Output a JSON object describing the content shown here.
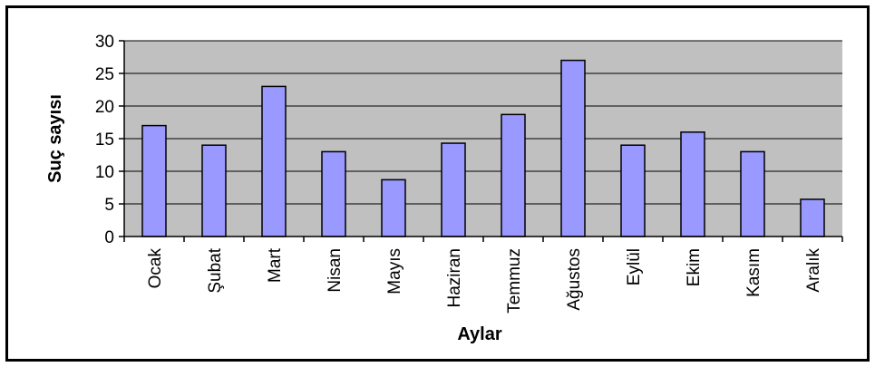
{
  "chart_data": {
    "type": "bar",
    "title": "",
    "xlabel": "Aylar",
    "ylabel": "Suç sayısı",
    "categories": [
      "Ocak",
      "Şubat",
      "Mart",
      "Nisan",
      "Mayıs",
      "Haziran",
      "Temmuz",
      "Ağustos",
      "Eylül",
      "Ekim",
      "Kasım",
      "Aralık"
    ],
    "values": [
      17,
      14,
      23,
      13,
      8.7,
      14.3,
      18.7,
      27,
      14,
      16,
      13,
      5.7
    ],
    "ylim": [
      0,
      30
    ],
    "yticks": [
      0,
      5,
      10,
      15,
      20,
      25,
      30
    ],
    "grid": true,
    "legend": "none",
    "colors": {
      "bar": "#9999ff",
      "plot_background": "#c0c0c0",
      "gridline": "#000000"
    }
  }
}
